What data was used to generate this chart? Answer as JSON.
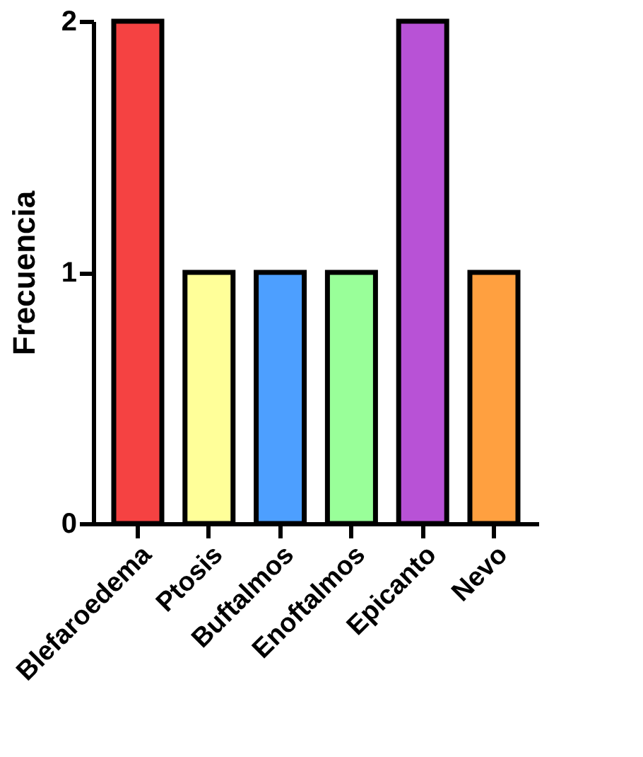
{
  "chart_data": {
    "type": "bar",
    "ylabel": "Frecuencia",
    "categories": [
      "Blefaroedema",
      "Ptosis",
      "Buftalmos",
      "Enoftalmos",
      "Epicanto",
      "Nevo"
    ],
    "values": [
      2,
      1,
      1,
      1,
      2,
      1
    ],
    "colors": [
      "#f54242",
      "#ffff99",
      "#4d9fff",
      "#99ff99",
      "#b852d6",
      "#ffa040"
    ],
    "ylim": [
      0,
      2
    ],
    "yticks": [
      0,
      1,
      2
    ],
    "grid": false
  }
}
